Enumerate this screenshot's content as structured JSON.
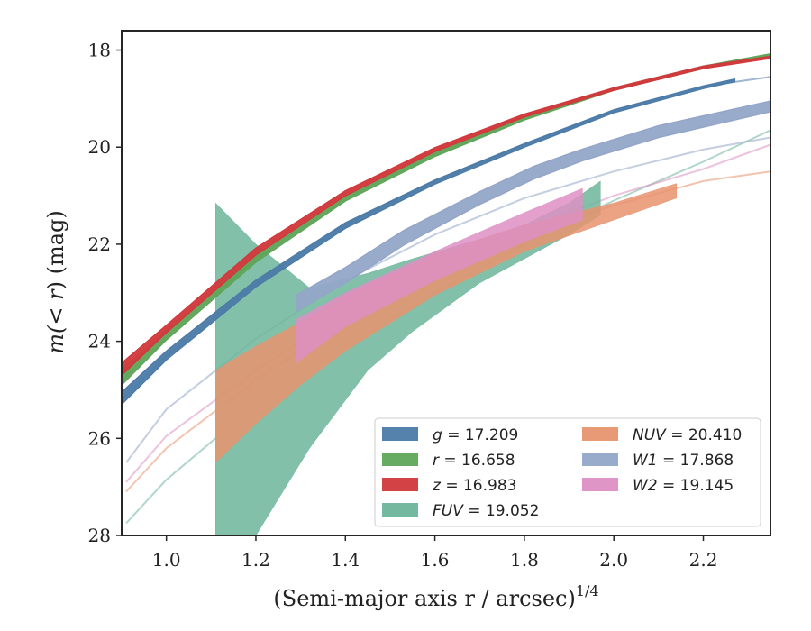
{
  "chart_data": {
    "type": "area",
    "xlabel": "(Semi-major axis r / arcsec)",
    "xlabel_exponent": "1/4",
    "ylabel_prefix": "m(",
    "ylabel_math": "< r",
    "ylabel_suffix": ") (mag)",
    "xlim": [
      0.9,
      2.35
    ],
    "ylim": [
      28,
      17.6
    ],
    "y_inverted": true,
    "xticks": [
      1.0,
      1.2,
      1.4,
      1.6,
      1.8,
      2.0,
      2.2
    ],
    "xtick_labels": [
      "1.0",
      "1.2",
      "1.4",
      "1.6",
      "1.8",
      "2.0",
      "2.2"
    ],
    "yticks": [
      18,
      20,
      22,
      24,
      26,
      28
    ],
    "ytick_labels": [
      "18",
      "20",
      "22",
      "24",
      "26",
      "28"
    ],
    "grid": false,
    "legend_position": "bottom-right",
    "legend_columns": 2,
    "series": [
      {
        "name": "g",
        "value_text": "17.209",
        "color": "#4c7ba8",
        "model_x": [
          0.9,
          1.0,
          1.2,
          1.4,
          1.6,
          1.8,
          2.0,
          2.2,
          2.35
        ],
        "model_y": [
          25.2,
          24.3,
          22.8,
          21.6,
          20.7,
          19.95,
          19.25,
          18.75,
          18.55
        ],
        "band_x": [
          0.9,
          1.0,
          1.2,
          1.4,
          1.6,
          1.8,
          2.0,
          2.2,
          2.27
        ],
        "band_lo": [
          25.3,
          24.38,
          22.88,
          21.67,
          20.76,
          20.0,
          19.29,
          18.79,
          18.65
        ],
        "band_hi": [
          25.05,
          24.2,
          22.74,
          21.56,
          20.68,
          19.93,
          19.23,
          18.74,
          18.6
        ]
      },
      {
        "name": "r",
        "value_text": "16.658",
        "color": "#5fa55a",
        "model_x": [
          0.9,
          1.0,
          1.2,
          1.4,
          1.6,
          1.8,
          2.0,
          2.2,
          2.35
        ],
        "model_y": [
          24.8,
          23.9,
          22.3,
          21.05,
          20.15,
          19.4,
          18.8,
          18.35,
          18.1
        ],
        "band_x": [
          0.9,
          1.0,
          1.2,
          1.4,
          1.6,
          1.8,
          2.0,
          2.2,
          2.35
        ],
        "band_lo": [
          24.9,
          23.97,
          22.37,
          21.11,
          20.19,
          19.44,
          18.83,
          18.38,
          18.12
        ],
        "band_hi": [
          24.65,
          23.8,
          22.23,
          21.0,
          20.1,
          19.37,
          18.78,
          18.33,
          18.08
        ]
      },
      {
        "name": "z",
        "value_text": "16.983",
        "color": "#d1393c",
        "model_x": [
          0.9,
          1.0,
          1.2,
          1.4,
          1.6,
          1.8,
          2.0,
          2.2,
          2.35
        ],
        "model_y": [
          24.6,
          23.75,
          22.15,
          20.95,
          20.05,
          19.35,
          18.8,
          18.35,
          18.15
        ],
        "band_x": [
          0.9,
          1.0,
          1.2,
          1.4,
          1.6,
          1.8,
          2.0,
          2.2,
          2.35
        ],
        "band_lo": [
          24.7,
          23.82,
          22.22,
          21.0,
          20.09,
          19.38,
          18.83,
          18.38,
          18.17
        ],
        "band_hi": [
          24.45,
          23.67,
          22.08,
          20.9,
          20.01,
          19.32,
          18.78,
          18.33,
          18.13
        ]
      },
      {
        "name": "FUV",
        "value_text": "19.052",
        "color": "#6db59a",
        "model_x": [
          0.91,
          1.0,
          1.2,
          1.4,
          1.6,
          1.8,
          2.0,
          2.2,
          2.35
        ],
        "model_y": [
          27.75,
          26.85,
          25.3,
          24.1,
          23.0,
          22.0,
          21.1,
          20.3,
          19.65
        ],
        "band_x": [
          1.11,
          1.11,
          1.2,
          1.32,
          1.45,
          1.55,
          1.7,
          1.8,
          1.9,
          1.97
        ],
        "band_lo": [
          28.0,
          28.0,
          28.0,
          26.2,
          24.6,
          23.8,
          22.8,
          22.3,
          21.8,
          21.4
        ],
        "band_hi": [
          21.15,
          21.15,
          22.0,
          22.9,
          22.6,
          22.3,
          21.9,
          21.6,
          21.15,
          20.7
        ]
      },
      {
        "name": "NUV",
        "value_text": "20.410",
        "color": "#e7936f",
        "model_x": [
          0.91,
          1.0,
          1.2,
          1.4,
          1.6,
          1.8,
          2.0,
          2.2,
          2.35
        ],
        "model_y": [
          27.1,
          26.2,
          24.8,
          23.6,
          22.6,
          21.8,
          21.2,
          20.7,
          20.5
        ],
        "band_x": [
          1.11,
          1.2,
          1.3,
          1.4,
          1.6,
          1.8,
          2.0,
          2.14
        ],
        "band_lo": [
          26.5,
          25.7,
          24.9,
          24.2,
          23.05,
          22.15,
          21.5,
          21.05
        ],
        "band_hi": [
          24.6,
          24.1,
          23.6,
          23.05,
          22.2,
          21.6,
          21.15,
          20.75
        ]
      },
      {
        "name": "W1",
        "value_text": "17.868",
        "color": "#94a6c8",
        "model_x": [
          0.91,
          1.0,
          1.2,
          1.4,
          1.6,
          1.8,
          2.0,
          2.2,
          2.35
        ],
        "model_y": [
          26.5,
          25.4,
          23.95,
          22.75,
          21.8,
          21.05,
          20.5,
          20.05,
          19.8
        ],
        "band_x": [
          1.29,
          1.4,
          1.53,
          1.7,
          1.82,
          1.93,
          2.1,
          2.35
        ],
        "band_lo": [
          23.38,
          22.8,
          22.02,
          21.18,
          20.66,
          20.28,
          19.8,
          19.27
        ],
        "band_hi": [
          23.05,
          22.48,
          21.72,
          20.92,
          20.4,
          20.04,
          19.56,
          19.05
        ]
      },
      {
        "name": "W2",
        "value_text": "19.145",
        "color": "#de8fc4",
        "model_x": [
          0.91,
          1.0,
          1.2,
          1.4,
          1.6,
          1.8,
          2.0,
          2.2,
          2.35
        ],
        "model_y": [
          26.9,
          25.95,
          24.6,
          23.4,
          22.5,
          21.7,
          21.0,
          20.45,
          19.95
        ],
        "band_x": [
          1.29,
          1.4,
          1.6,
          1.8,
          1.93
        ],
        "band_lo": [
          24.45,
          23.7,
          22.75,
          21.95,
          21.5
        ],
        "band_hi": [
          23.55,
          23.0,
          22.15,
          21.35,
          20.85
        ]
      }
    ]
  }
}
